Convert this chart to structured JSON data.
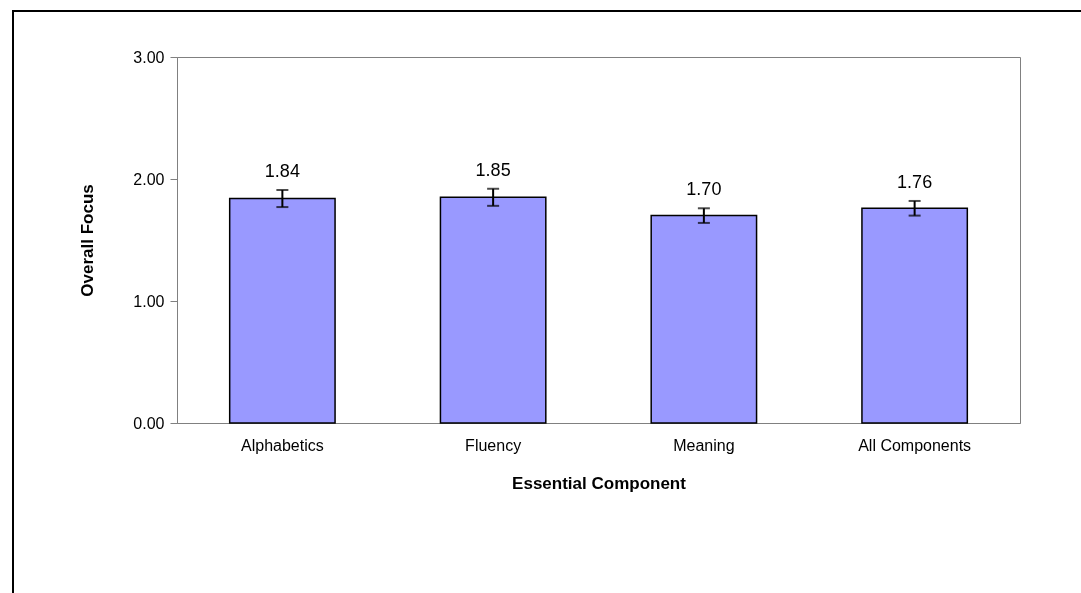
{
  "chart_data": {
    "type": "bar",
    "xlabel": "Essential Component",
    "ylabel": "Overall Focus",
    "categories": [
      "Alphabetics",
      "Fluency",
      "Meaning",
      "All Components"
    ],
    "values": [
      1.84,
      1.85,
      1.7,
      1.76
    ],
    "errors": [
      0.07,
      0.07,
      0.06,
      0.06
    ],
    "color": "#9999ff",
    "ylim": [
      0,
      3
    ],
    "yticks": [
      {
        "value": 0,
        "label": "0.00"
      },
      {
        "value": 1,
        "label": "1.00"
      },
      {
        "value": 2,
        "label": "2.00"
      },
      {
        "value": 3,
        "label": "3.00"
      }
    ],
    "value_labels": [
      "1.84",
      "1.85",
      "1.70",
      "1.76"
    ],
    "grid": false
  }
}
